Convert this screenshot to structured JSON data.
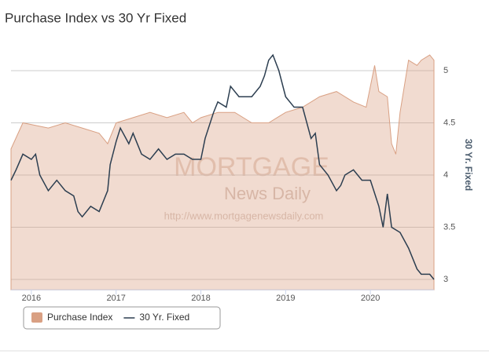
{
  "chart_data": {
    "type": "area-line",
    "title": "Purchase Index vs 30 Yr Fixed",
    "y_axis_title": "30 Yr. Fixed",
    "y_axis_position": "right",
    "watermark": [
      "MORTGAGE",
      "News Daily",
      "http://www.mortgagenewsdaily.com"
    ],
    "xlim": [
      2015.76,
      2020.75
    ],
    "xticks": [
      2016,
      2017,
      2018,
      2019,
      2020
    ],
    "ylim": [
      2.9,
      5.25
    ],
    "yticks": [
      3,
      3.5,
      4,
      4.5,
      5
    ],
    "grid": true,
    "series": [
      {
        "name": "Purchase Index",
        "kind": "area",
        "color": "#d9a083",
        "x": [
          2015.76,
          2015.9,
          2016.2,
          2016.4,
          2016.6,
          2016.8,
          2016.9,
          2017.0,
          2017.2,
          2017.4,
          2017.6,
          2017.8,
          2017.9,
          2018.0,
          2018.2,
          2018.4,
          2018.6,
          2018.8,
          2018.9,
          2019.0,
          2019.2,
          2019.4,
          2019.6,
          2019.8,
          2019.95,
          2020.05,
          2020.1,
          2020.2,
          2020.25,
          2020.3,
          2020.35,
          2020.45,
          2020.55,
          2020.6,
          2020.7,
          2020.75
        ],
        "values": [
          4.25,
          4.5,
          4.45,
          4.5,
          4.45,
          4.4,
          4.3,
          4.5,
          4.55,
          4.6,
          4.55,
          4.6,
          4.5,
          4.55,
          4.6,
          4.6,
          4.5,
          4.5,
          4.55,
          4.6,
          4.65,
          4.75,
          4.8,
          4.7,
          4.65,
          5.05,
          4.8,
          4.75,
          4.3,
          4.2,
          4.6,
          5.1,
          5.05,
          5.1,
          5.15,
          5.1
        ]
      },
      {
        "name": "30 Yr. Fixed",
        "kind": "line",
        "color": "#2c3e50",
        "x": [
          2015.76,
          2015.82,
          2015.9,
          2016.0,
          2016.05,
          2016.1,
          2016.2,
          2016.3,
          2016.4,
          2016.5,
          2016.55,
          2016.6,
          2016.7,
          2016.8,
          2016.9,
          2016.93,
          2017.0,
          2017.05,
          2017.15,
          2017.2,
          2017.3,
          2017.4,
          2017.5,
          2017.6,
          2017.7,
          2017.8,
          2017.9,
          2018.0,
          2018.05,
          2018.15,
          2018.2,
          2018.3,
          2018.35,
          2018.45,
          2018.6,
          2018.7,
          2018.75,
          2018.8,
          2018.85,
          2018.92,
          2019.0,
          2019.1,
          2019.2,
          2019.3,
          2019.35,
          2019.4,
          2019.5,
          2019.6,
          2019.65,
          2019.7,
          2019.8,
          2019.9,
          2020.0,
          2020.1,
          2020.15,
          2020.2,
          2020.25,
          2020.35,
          2020.45,
          2020.55,
          2020.6,
          2020.7,
          2020.75
        ],
        "values": [
          3.95,
          4.05,
          4.2,
          4.15,
          4.2,
          4.0,
          3.85,
          3.95,
          3.85,
          3.8,
          3.65,
          3.6,
          3.7,
          3.65,
          3.85,
          4.1,
          4.32,
          4.45,
          4.3,
          4.4,
          4.2,
          4.15,
          4.25,
          4.15,
          4.2,
          4.2,
          4.15,
          4.15,
          4.35,
          4.6,
          4.7,
          4.65,
          4.85,
          4.75,
          4.75,
          4.85,
          4.95,
          5.1,
          5.15,
          5.0,
          4.75,
          4.65,
          4.65,
          4.35,
          4.4,
          4.1,
          4.0,
          3.85,
          3.9,
          4.0,
          4.05,
          3.95,
          3.95,
          3.7,
          3.5,
          3.82,
          3.5,
          3.45,
          3.3,
          3.1,
          3.05,
          3.05,
          3.0
        ]
      }
    ]
  }
}
